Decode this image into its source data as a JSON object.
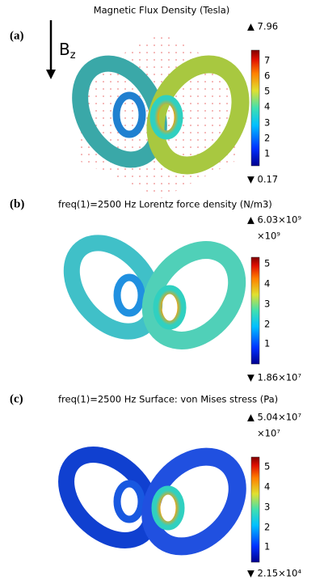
{
  "panels": [
    {
      "label": "(a)",
      "title": "Magnetic Flux Density (Tesla)",
      "field_symbol": "B",
      "field_subscript": "z",
      "max": "▲ 7.96",
      "min": "▼ 0.17",
      "ticks": [
        "7",
        "6",
        "5",
        "4",
        "3",
        "2",
        "1"
      ]
    },
    {
      "label": "(b)",
      "title": "freq(1)=2500 Hz Lorentz force density (N/m3)",
      "max": "▲ 6.03×10⁹",
      "multiplier": "×10⁹",
      "min": "▼ 1.86×10⁷",
      "ticks": [
        "5",
        "4",
        "3",
        "2",
        "1"
      ]
    },
    {
      "label": "(c)",
      "title": "freq(1)=2500 Hz  Surface: von Mises stress (Pa)",
      "max": "▲ 5.04×10⁷",
      "multiplier": "×10⁷",
      "min": "▼ 2.15×10⁴",
      "ticks": [
        "5",
        "4",
        "3",
        "2",
        "1"
      ]
    }
  ]
}
